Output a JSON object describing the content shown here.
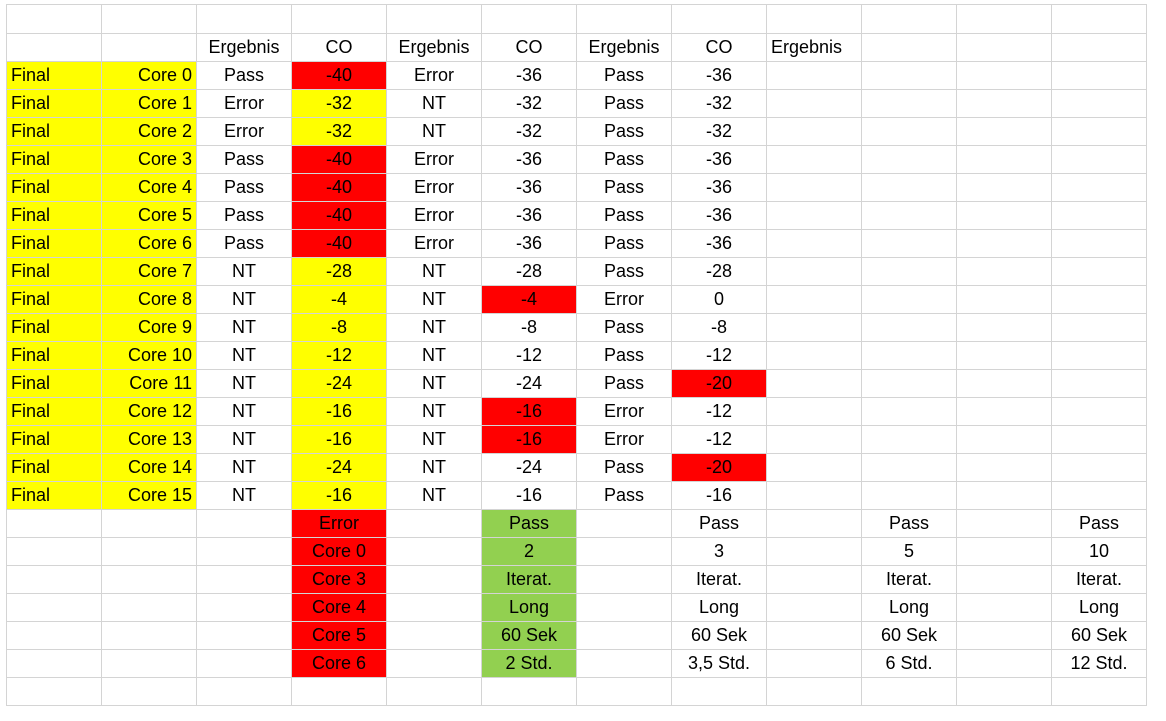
{
  "colors": {
    "yellow": "#ffff00",
    "red": "#ff0000",
    "green": "#92d050",
    "grid": "#d4d4d4"
  },
  "grid": [
    [
      {
        "t": ""
      },
      {
        "t": ""
      },
      {
        "t": ""
      },
      {
        "t": ""
      },
      {
        "t": ""
      },
      {
        "t": ""
      },
      {
        "t": ""
      },
      {
        "t": ""
      },
      {
        "t": ""
      },
      {
        "t": ""
      },
      {
        "t": ""
      },
      {
        "t": ""
      }
    ],
    [
      {
        "t": ""
      },
      {
        "t": ""
      },
      {
        "t": "Ergebnis"
      },
      {
        "t": "CO"
      },
      {
        "t": "Ergebnis"
      },
      {
        "t": "CO"
      },
      {
        "t": "Ergebnis"
      },
      {
        "t": "CO"
      },
      {
        "t": "Ergebnis",
        "a": "left"
      },
      {
        "t": ""
      },
      {
        "t": ""
      },
      {
        "t": ""
      }
    ],
    [
      {
        "t": "Final",
        "f": "yellow",
        "a": "left"
      },
      {
        "t": "Core 0",
        "f": "yellow",
        "a": "right"
      },
      {
        "t": "Pass"
      },
      {
        "t": "-40",
        "f": "red"
      },
      {
        "t": "Error"
      },
      {
        "t": "-36"
      },
      {
        "t": "Pass"
      },
      {
        "t": "-36"
      },
      {
        "t": ""
      },
      {
        "t": ""
      },
      {
        "t": ""
      },
      {
        "t": ""
      }
    ],
    [
      {
        "t": "Final",
        "f": "yellow",
        "a": "left"
      },
      {
        "t": "Core 1",
        "f": "yellow",
        "a": "right"
      },
      {
        "t": "Error"
      },
      {
        "t": "-32",
        "f": "yellow"
      },
      {
        "t": "NT"
      },
      {
        "t": "-32"
      },
      {
        "t": "Pass"
      },
      {
        "t": "-32"
      },
      {
        "t": ""
      },
      {
        "t": ""
      },
      {
        "t": ""
      },
      {
        "t": ""
      }
    ],
    [
      {
        "t": "Final",
        "f": "yellow",
        "a": "left"
      },
      {
        "t": "Core 2",
        "f": "yellow",
        "a": "right"
      },
      {
        "t": "Error"
      },
      {
        "t": "-32",
        "f": "yellow"
      },
      {
        "t": "NT"
      },
      {
        "t": "-32"
      },
      {
        "t": "Pass"
      },
      {
        "t": "-32"
      },
      {
        "t": ""
      },
      {
        "t": ""
      },
      {
        "t": ""
      },
      {
        "t": ""
      }
    ],
    [
      {
        "t": "Final",
        "f": "yellow",
        "a": "left"
      },
      {
        "t": "Core 3",
        "f": "yellow",
        "a": "right"
      },
      {
        "t": "Pass"
      },
      {
        "t": "-40",
        "f": "red"
      },
      {
        "t": "Error"
      },
      {
        "t": "-36"
      },
      {
        "t": "Pass"
      },
      {
        "t": "-36"
      },
      {
        "t": ""
      },
      {
        "t": ""
      },
      {
        "t": ""
      },
      {
        "t": ""
      }
    ],
    [
      {
        "t": "Final",
        "f": "yellow",
        "a": "left"
      },
      {
        "t": "Core 4",
        "f": "yellow",
        "a": "right"
      },
      {
        "t": "Pass"
      },
      {
        "t": "-40",
        "f": "red"
      },
      {
        "t": "Error"
      },
      {
        "t": "-36"
      },
      {
        "t": "Pass"
      },
      {
        "t": "-36"
      },
      {
        "t": ""
      },
      {
        "t": ""
      },
      {
        "t": ""
      },
      {
        "t": ""
      }
    ],
    [
      {
        "t": "Final",
        "f": "yellow",
        "a": "left"
      },
      {
        "t": "Core 5",
        "f": "yellow",
        "a": "right"
      },
      {
        "t": "Pass"
      },
      {
        "t": "-40",
        "f": "red"
      },
      {
        "t": "Error"
      },
      {
        "t": "-36"
      },
      {
        "t": "Pass"
      },
      {
        "t": "-36"
      },
      {
        "t": ""
      },
      {
        "t": ""
      },
      {
        "t": ""
      },
      {
        "t": ""
      }
    ],
    [
      {
        "t": "Final",
        "f": "yellow",
        "a": "left"
      },
      {
        "t": "Core 6",
        "f": "yellow",
        "a": "right"
      },
      {
        "t": "Pass"
      },
      {
        "t": "-40",
        "f": "red"
      },
      {
        "t": "Error"
      },
      {
        "t": "-36"
      },
      {
        "t": "Pass"
      },
      {
        "t": "-36"
      },
      {
        "t": ""
      },
      {
        "t": ""
      },
      {
        "t": ""
      },
      {
        "t": ""
      }
    ],
    [
      {
        "t": "Final",
        "f": "yellow",
        "a": "left"
      },
      {
        "t": "Core 7",
        "f": "yellow",
        "a": "right"
      },
      {
        "t": "NT"
      },
      {
        "t": "-28",
        "f": "yellow"
      },
      {
        "t": "NT"
      },
      {
        "t": "-28"
      },
      {
        "t": "Pass"
      },
      {
        "t": "-28"
      },
      {
        "t": ""
      },
      {
        "t": ""
      },
      {
        "t": ""
      },
      {
        "t": ""
      }
    ],
    [
      {
        "t": "Final",
        "f": "yellow",
        "a": "left"
      },
      {
        "t": "Core 8",
        "f": "yellow",
        "a": "right"
      },
      {
        "t": "NT"
      },
      {
        "t": "-4",
        "f": "yellow"
      },
      {
        "t": "NT"
      },
      {
        "t": "-4",
        "f": "red"
      },
      {
        "t": "Error"
      },
      {
        "t": "0"
      },
      {
        "t": ""
      },
      {
        "t": ""
      },
      {
        "t": ""
      },
      {
        "t": ""
      }
    ],
    [
      {
        "t": "Final",
        "f": "yellow",
        "a": "left"
      },
      {
        "t": "Core 9",
        "f": "yellow",
        "a": "right"
      },
      {
        "t": "NT"
      },
      {
        "t": "-8",
        "f": "yellow"
      },
      {
        "t": "NT"
      },
      {
        "t": "-8"
      },
      {
        "t": "Pass"
      },
      {
        "t": "-8"
      },
      {
        "t": ""
      },
      {
        "t": ""
      },
      {
        "t": ""
      },
      {
        "t": ""
      }
    ],
    [
      {
        "t": "Final",
        "f": "yellow",
        "a": "left"
      },
      {
        "t": "Core 10",
        "f": "yellow",
        "a": "right"
      },
      {
        "t": "NT"
      },
      {
        "t": "-12",
        "f": "yellow"
      },
      {
        "t": "NT"
      },
      {
        "t": "-12"
      },
      {
        "t": "Pass"
      },
      {
        "t": "-12"
      },
      {
        "t": ""
      },
      {
        "t": ""
      },
      {
        "t": ""
      },
      {
        "t": ""
      }
    ],
    [
      {
        "t": "Final",
        "f": "yellow",
        "a": "left"
      },
      {
        "t": "Core 11",
        "f": "yellow",
        "a": "right"
      },
      {
        "t": "NT"
      },
      {
        "t": "-24",
        "f": "yellow"
      },
      {
        "t": "NT"
      },
      {
        "t": "-24"
      },
      {
        "t": "Pass"
      },
      {
        "t": "-20",
        "f": "red"
      },
      {
        "t": ""
      },
      {
        "t": ""
      },
      {
        "t": ""
      },
      {
        "t": ""
      }
    ],
    [
      {
        "t": "Final",
        "f": "yellow",
        "a": "left"
      },
      {
        "t": "Core 12",
        "f": "yellow",
        "a": "right"
      },
      {
        "t": "NT"
      },
      {
        "t": "-16",
        "f": "yellow"
      },
      {
        "t": "NT"
      },
      {
        "t": "-16",
        "f": "red"
      },
      {
        "t": "Error"
      },
      {
        "t": "-12"
      },
      {
        "t": ""
      },
      {
        "t": ""
      },
      {
        "t": ""
      },
      {
        "t": ""
      }
    ],
    [
      {
        "t": "Final",
        "f": "yellow",
        "a": "left"
      },
      {
        "t": "Core 13",
        "f": "yellow",
        "a": "right"
      },
      {
        "t": "NT"
      },
      {
        "t": "-16",
        "f": "yellow"
      },
      {
        "t": "NT"
      },
      {
        "t": "-16",
        "f": "red"
      },
      {
        "t": "Error"
      },
      {
        "t": "-12"
      },
      {
        "t": ""
      },
      {
        "t": ""
      },
      {
        "t": ""
      },
      {
        "t": ""
      }
    ],
    [
      {
        "t": "Final",
        "f": "yellow",
        "a": "left"
      },
      {
        "t": "Core 14",
        "f": "yellow",
        "a": "right"
      },
      {
        "t": "NT"
      },
      {
        "t": "-24",
        "f": "yellow"
      },
      {
        "t": "NT"
      },
      {
        "t": "-24"
      },
      {
        "t": "Pass"
      },
      {
        "t": "-20",
        "f": "red"
      },
      {
        "t": ""
      },
      {
        "t": ""
      },
      {
        "t": ""
      },
      {
        "t": ""
      }
    ],
    [
      {
        "t": "Final",
        "f": "yellow",
        "a": "left"
      },
      {
        "t": "Core 15",
        "f": "yellow",
        "a": "right"
      },
      {
        "t": "NT"
      },
      {
        "t": "-16",
        "f": "yellow"
      },
      {
        "t": "NT"
      },
      {
        "t": "-16"
      },
      {
        "t": "Pass"
      },
      {
        "t": "-16"
      },
      {
        "t": ""
      },
      {
        "t": ""
      },
      {
        "t": ""
      },
      {
        "t": ""
      }
    ],
    [
      {
        "t": ""
      },
      {
        "t": ""
      },
      {
        "t": ""
      },
      {
        "t": "Error",
        "f": "red"
      },
      {
        "t": ""
      },
      {
        "t": "Pass",
        "f": "green"
      },
      {
        "t": ""
      },
      {
        "t": "Pass"
      },
      {
        "t": ""
      },
      {
        "t": "Pass"
      },
      {
        "t": ""
      },
      {
        "t": "Pass"
      }
    ],
    [
      {
        "t": ""
      },
      {
        "t": ""
      },
      {
        "t": ""
      },
      {
        "t": "Core 0",
        "f": "red"
      },
      {
        "t": ""
      },
      {
        "t": "2",
        "f": "green"
      },
      {
        "t": ""
      },
      {
        "t": "3"
      },
      {
        "t": ""
      },
      {
        "t": "5"
      },
      {
        "t": ""
      },
      {
        "t": "10"
      }
    ],
    [
      {
        "t": ""
      },
      {
        "t": ""
      },
      {
        "t": ""
      },
      {
        "t": "Core 3",
        "f": "red"
      },
      {
        "t": ""
      },
      {
        "t": "Iterat.",
        "f": "green"
      },
      {
        "t": ""
      },
      {
        "t": "Iterat."
      },
      {
        "t": ""
      },
      {
        "t": "Iterat."
      },
      {
        "t": ""
      },
      {
        "t": "Iterat."
      }
    ],
    [
      {
        "t": ""
      },
      {
        "t": ""
      },
      {
        "t": ""
      },
      {
        "t": "Core 4",
        "f": "red"
      },
      {
        "t": ""
      },
      {
        "t": "Long",
        "f": "green"
      },
      {
        "t": ""
      },
      {
        "t": "Long"
      },
      {
        "t": ""
      },
      {
        "t": "Long"
      },
      {
        "t": ""
      },
      {
        "t": "Long"
      }
    ],
    [
      {
        "t": ""
      },
      {
        "t": ""
      },
      {
        "t": ""
      },
      {
        "t": "Core 5",
        "f": "red"
      },
      {
        "t": ""
      },
      {
        "t": "60 Sek",
        "f": "green"
      },
      {
        "t": ""
      },
      {
        "t": "60 Sek"
      },
      {
        "t": ""
      },
      {
        "t": "60 Sek"
      },
      {
        "t": ""
      },
      {
        "t": "60 Sek"
      }
    ],
    [
      {
        "t": ""
      },
      {
        "t": ""
      },
      {
        "t": ""
      },
      {
        "t": "Core 6",
        "f": "red"
      },
      {
        "t": ""
      },
      {
        "t": "2 Std.",
        "f": "green"
      },
      {
        "t": ""
      },
      {
        "t": "3,5 Std."
      },
      {
        "t": ""
      },
      {
        "t": "6 Std."
      },
      {
        "t": ""
      },
      {
        "t": "12 Std."
      }
    ],
    [
      {
        "t": ""
      },
      {
        "t": ""
      },
      {
        "t": ""
      },
      {
        "t": ""
      },
      {
        "t": ""
      },
      {
        "t": ""
      },
      {
        "t": ""
      },
      {
        "t": ""
      },
      {
        "t": ""
      },
      {
        "t": ""
      },
      {
        "t": ""
      },
      {
        "t": ""
      }
    ]
  ]
}
